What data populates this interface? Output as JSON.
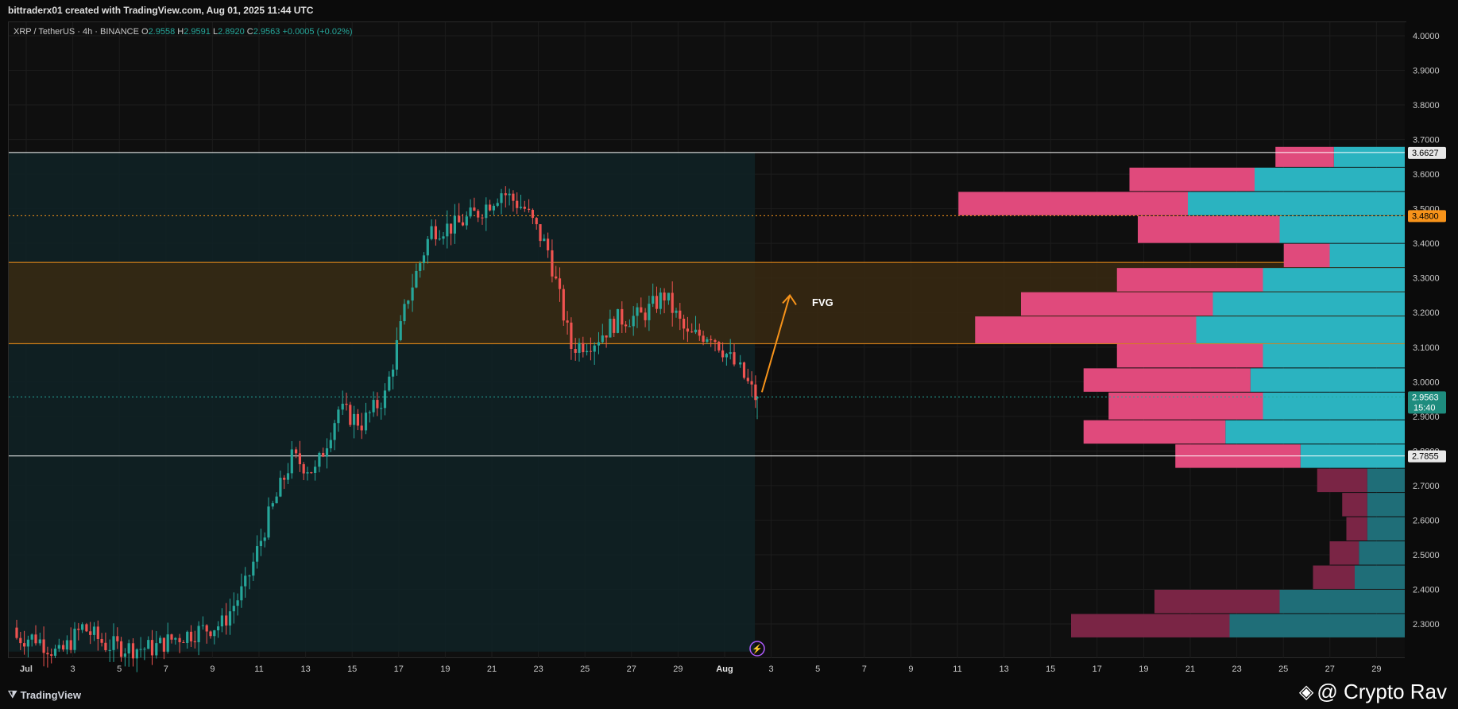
{
  "header": {
    "caption": "bittraderx01 created with TradingView.com, Aug 01, 2025 11:44 UTC"
  },
  "legend": {
    "symbol": "XRP / TetherUS · 4h · BINANCE",
    "open_label": "O",
    "open": "2.9558",
    "high_label": "H",
    "high": "2.9591",
    "low_label": "L",
    "low": "2.8920",
    "close_label": "C",
    "close": "2.9563",
    "change": "+0.0005 (+0.02%)"
  },
  "footer": {
    "brand": "TradingView",
    "credit": "@ Crypto Rav"
  },
  "colors": {
    "up": "#26a69a",
    "down": "#ef5350",
    "orange": "#f7931a",
    "vp_up": "#2bb3c0",
    "vp_down": "#e04a7c"
  },
  "chart_data": {
    "type": "candlestick",
    "symbol": "XRP / TetherUS",
    "interval": "4h",
    "exchange": "BINANCE",
    "ylim": [
      2.22,
      4.04
    ],
    "y_ticks": [
      "4.0000",
      "3.9000",
      "3.8000",
      "3.7000",
      "3.6000",
      "3.5000",
      "3.4000",
      "3.3000",
      "3.2000",
      "3.1000",
      "3.0000",
      "2.9000",
      "2.8000",
      "2.7000",
      "2.6000",
      "2.5000",
      "2.4000",
      "2.3000"
    ],
    "x_ticks": [
      "Jul",
      "3",
      "5",
      "7",
      "9",
      "11",
      "13",
      "15",
      "17",
      "19",
      "21",
      "23",
      "25",
      "27",
      "29",
      "Aug",
      "3",
      "5",
      "7",
      "9",
      "11",
      "13",
      "15",
      "17",
      "19",
      "21",
      "23",
      "25",
      "27",
      "29"
    ],
    "price_labels": [
      {
        "value": 3.6627,
        "text": "3.6627",
        "style": "white"
      },
      {
        "value": 3.48,
        "text": "3.4800",
        "style": "orange"
      },
      {
        "value": 2.9563,
        "text": "2.9563",
        "sub": "15:40",
        "style": "green"
      },
      {
        "value": 2.7855,
        "text": "2.7855",
        "style": "white"
      }
    ],
    "levels": [
      {
        "value": 3.6627,
        "color": "#ffffff"
      },
      {
        "value": 2.7855,
        "color": "#ffffff"
      },
      {
        "value": 3.48,
        "color": "#f7931a",
        "dotted": true
      },
      {
        "value": 2.9563,
        "color": "#26a69a",
        "dotted": true
      }
    ],
    "fvg": {
      "label": "FVG",
      "top": 3.345,
      "bottom": 3.11
    },
    "daily_closes": [
      {
        "day": 1,
        "price": 2.26
      },
      {
        "day": 2,
        "price": 2.21
      },
      {
        "day": 3,
        "price": 2.29
      },
      {
        "day": 4,
        "price": 2.24
      },
      {
        "day": 5,
        "price": 2.23
      },
      {
        "day": 6,
        "price": 2.23
      },
      {
        "day": 7,
        "price": 2.26
      },
      {
        "day": 8,
        "price": 2.28
      },
      {
        "day": 9,
        "price": 2.3
      },
      {
        "day": 10,
        "price": 2.41
      },
      {
        "day": 11,
        "price": 2.61
      },
      {
        "day": 12,
        "price": 2.78
      },
      {
        "day": 13,
        "price": 2.74
      },
      {
        "day": 14,
        "price": 2.92
      },
      {
        "day": 15,
        "price": 2.88
      },
      {
        "day": 16,
        "price": 2.96
      },
      {
        "day": 17,
        "price": 3.25
      },
      {
        "day": 18,
        "price": 3.44
      },
      {
        "day": 19,
        "price": 3.45
      },
      {
        "day": 20,
        "price": 3.49
      },
      {
        "day": 21,
        "price": 3.55
      },
      {
        "day": 22,
        "price": 3.5
      },
      {
        "day": 23,
        "price": 3.38
      },
      {
        "day": 24,
        "price": 3.1
      },
      {
        "day": 25,
        "price": 3.12
      },
      {
        "day": 26,
        "price": 3.18
      },
      {
        "day": 27,
        "price": 3.19
      },
      {
        "day": 28,
        "price": 3.25
      },
      {
        "day": 29,
        "price": 3.13
      },
      {
        "day": 30,
        "price": 3.14
      },
      {
        "day": 31,
        "price": 3.05
      },
      {
        "day": 32,
        "price": 2.956
      }
    ],
    "volume_profile": [
      {
        "from": 3.62,
        "to": 3.68,
        "up": 0.17,
        "down": 0.14
      },
      {
        "from": 3.55,
        "to": 3.62,
        "up": 0.36,
        "down": 0.3
      },
      {
        "from": 3.48,
        "to": 3.55,
        "up": 0.52,
        "down": 0.55
      },
      {
        "from": 3.4,
        "to": 3.48,
        "up": 0.3,
        "down": 0.34
      },
      {
        "from": 3.33,
        "to": 3.4,
        "up": 0.18,
        "down": 0.11
      },
      {
        "from": 3.26,
        "to": 3.33,
        "up": 0.34,
        "down": 0.35
      },
      {
        "from": 3.19,
        "to": 3.26,
        "up": 0.46,
        "down": 0.46
      },
      {
        "from": 3.11,
        "to": 3.19,
        "up": 0.5,
        "down": 0.53
      },
      {
        "from": 3.04,
        "to": 3.11,
        "up": 0.34,
        "down": 0.35
      },
      {
        "from": 2.97,
        "to": 3.04,
        "up": 0.37,
        "down": 0.4
      },
      {
        "from": 2.89,
        "to": 2.97,
        "up": 0.34,
        "down": 0.37
      },
      {
        "from": 2.82,
        "to": 2.89,
        "up": 0.43,
        "down": 0.34
      },
      {
        "from": 2.75,
        "to": 2.82,
        "up": 0.25,
        "down": 0.3
      },
      {
        "from": 2.68,
        "to": 2.75,
        "up": 0.09,
        "down": 0.12
      },
      {
        "from": 2.61,
        "to": 2.68,
        "up": 0.09,
        "down": 0.06
      },
      {
        "from": 2.54,
        "to": 2.61,
        "up": 0.09,
        "down": 0.05
      },
      {
        "from": 2.47,
        "to": 2.54,
        "up": 0.11,
        "down": 0.07
      },
      {
        "from": 2.4,
        "to": 2.47,
        "up": 0.12,
        "down": 0.1
      },
      {
        "from": 2.33,
        "to": 2.4,
        "up": 0.3,
        "down": 0.3
      },
      {
        "from": 2.26,
        "to": 2.33,
        "up": 0.42,
        "down": 0.38
      }
    ]
  }
}
